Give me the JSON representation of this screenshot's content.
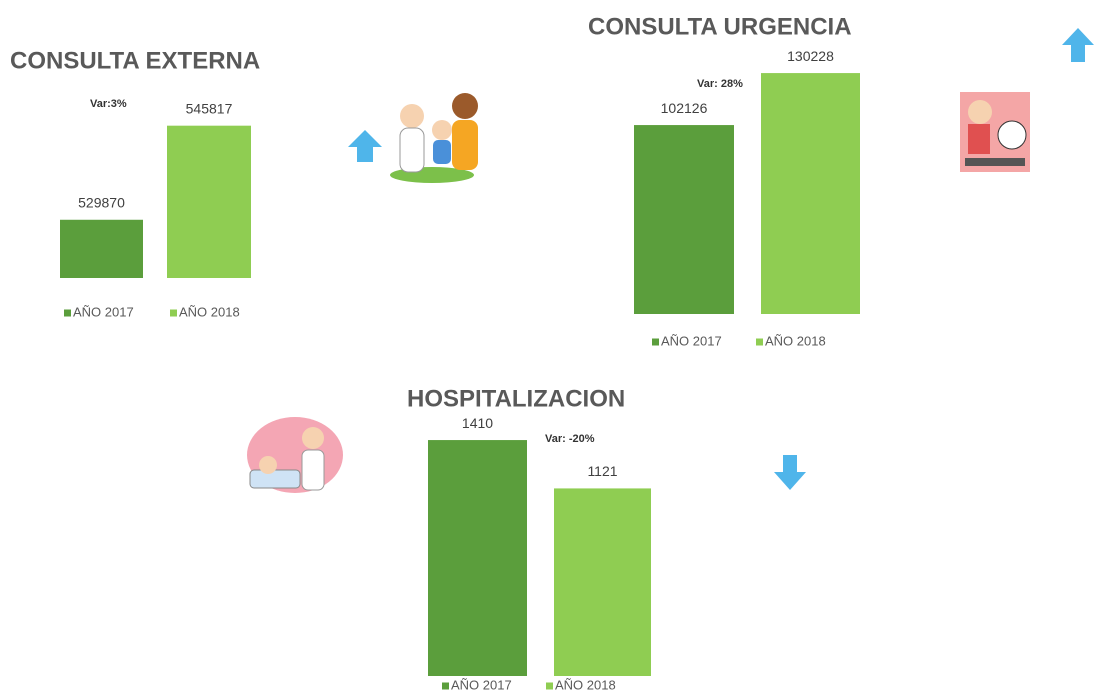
{
  "chart_data": [
    {
      "type": "bar",
      "title": "CONSULTA EXTERNA",
      "annotation": "Var:3%",
      "series": [
        {
          "name": "AÑO 2017",
          "color": "#5b9e3c",
          "values": [
            529870
          ]
        },
        {
          "name": "AÑO 2018",
          "color": "#8fcd52",
          "values": [
            545817
          ]
        }
      ],
      "ylim": [
        520000,
        550000
      ]
    },
    {
      "type": "bar",
      "title": "CONSULTA URGENCIA",
      "annotation": "Var: 28%",
      "series": [
        {
          "name": "AÑO 2017",
          "color": "#5b9e3c",
          "values": [
            102126
          ]
        },
        {
          "name": "AÑO 2018",
          "color": "#8fcd52",
          "values": [
            130228
          ]
        }
      ],
      "ylim": [
        0,
        140000
      ]
    },
    {
      "type": "bar",
      "title": "HOSPITALIZACION",
      "annotation": "Var: -20%",
      "series": [
        {
          "name": "AÑO 2017",
          "color": "#5b9e3c",
          "values": [
            1410
          ]
        },
        {
          "name": "AÑO 2018",
          "color": "#8fcd52",
          "values": [
            1121
          ]
        }
      ],
      "ylim": [
        0,
        1500
      ]
    }
  ]
}
